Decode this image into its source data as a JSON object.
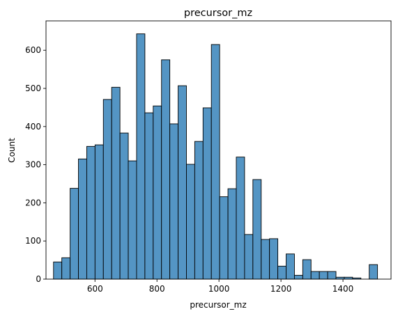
{
  "chart_data": {
    "type": "bar",
    "title": "precursor_mz",
    "xlabel": "precursor_mz",
    "ylabel": "Count",
    "xlim": [
      442,
      1555
    ],
    "ylim": [
      0,
      677
    ],
    "x_ticks": [
      600,
      800,
      1000,
      1200,
      1400
    ],
    "y_ticks": [
      0,
      100,
      200,
      300,
      400,
      500,
      600
    ],
    "grid": false,
    "bar_fill": "#5495c4",
    "bar_edge": "#000000",
    "bin_start": 466.2,
    "bin_width": 26.8,
    "values": [
      45,
      56,
      238,
      315,
      348,
      352,
      471,
      503,
      383,
      310,
      643,
      436,
      454,
      575,
      407,
      507,
      301,
      361,
      449,
      615,
      216,
      237,
      320,
      117,
      261,
      104,
      106,
      34,
      66,
      10,
      51,
      20,
      20,
      20,
      5,
      5,
      3,
      0,
      38
    ]
  }
}
